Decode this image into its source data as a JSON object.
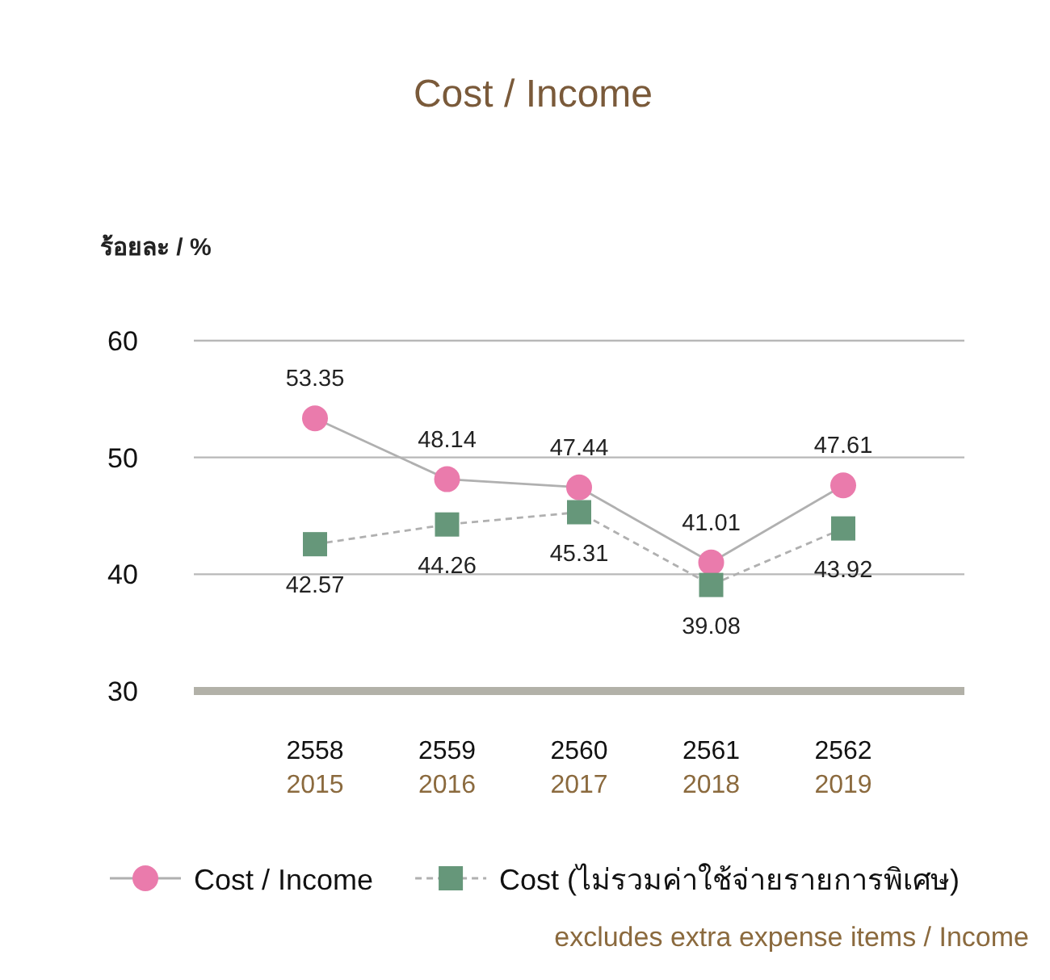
{
  "chart_data": {
    "type": "line",
    "title": "Cost / Income",
    "ylabel": "ร้อยละ / %",
    "categories": [
      "2558\n2015",
      "2559\n2016",
      "2560\n2017",
      "2561\n2018",
      "2562\n2019"
    ],
    "ylim": [
      30,
      60
    ],
    "yticks": [
      30,
      40,
      50,
      60
    ],
    "grid": "y",
    "legend": "bottom",
    "data_labels": true,
    "series": [
      {
        "name": "Cost / Income",
        "color": "#ea7bac",
        "marker": "circle",
        "line_style": "solid",
        "values": [
          53.35,
          48.14,
          47.44,
          41.01,
          47.61
        ]
      },
      {
        "name": "Cost (ไม่รวมค่าใช้จ่ายรายการพิเศษ)\nexcludes extra expense items / Income",
        "color": "#66977a",
        "marker": "square",
        "line_style": "dashed",
        "values": [
          42.57,
          44.26,
          45.31,
          39.08,
          43.92
        ]
      }
    ]
  }
}
